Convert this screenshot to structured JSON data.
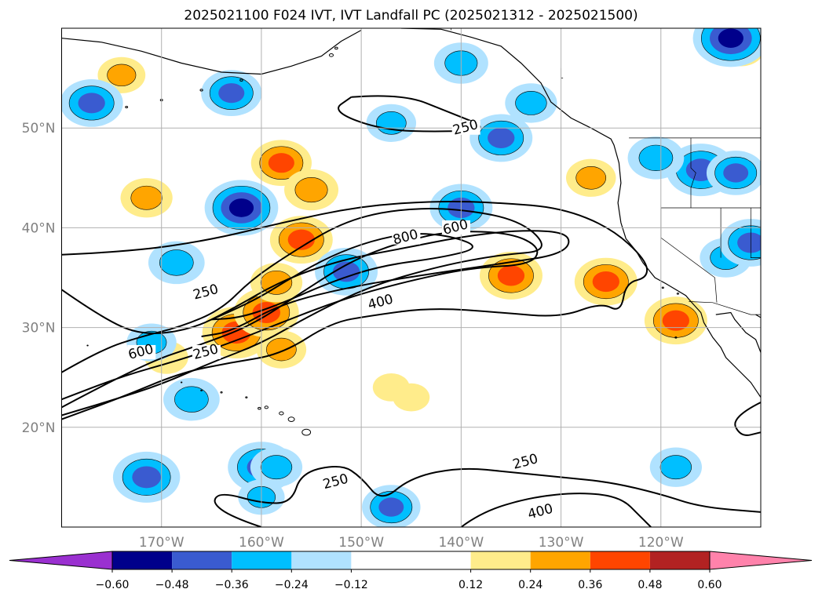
{
  "title": "2025021100 F024 IVT, IVT Landfall PC (2025021312 - 2025021500)",
  "map": {
    "projection": "PlateCarree",
    "lon_range": [
      -180,
      -110
    ],
    "lat_range": [
      10,
      60
    ],
    "lat_ticks": [
      {
        "value": 20,
        "label": "20°N"
      },
      {
        "value": 30,
        "label": "30°N"
      },
      {
        "value": 40,
        "label": "40°N"
      },
      {
        "value": 50,
        "label": "50°N"
      }
    ],
    "lon_ticks": [
      {
        "value": -170,
        "label": "170°W"
      },
      {
        "value": -160,
        "label": "160°W"
      },
      {
        "value": -150,
        "label": "150°W"
      },
      {
        "value": -140,
        "label": "140°W"
      },
      {
        "value": -130,
        "label": "130°W"
      },
      {
        "value": -120,
        "label": "120°W"
      }
    ],
    "grid": true,
    "ivt_contour_levels": [
      250,
      400,
      600,
      800
    ],
    "contour_labels": [
      {
        "text": "250",
        "lon": -139.5,
        "lat": 49.8
      },
      {
        "text": "250",
        "lon": -165.5,
        "lat": 33.3
      },
      {
        "text": "250",
        "lon": -165.5,
        "lat": 27.3
      },
      {
        "text": "250",
        "lon": -133.5,
        "lat": 16.3
      },
      {
        "text": "250",
        "lon": -152.5,
        "lat": 14.3
      },
      {
        "text": "400",
        "lon": -148.0,
        "lat": 32.3
      },
      {
        "text": "400",
        "lon": -132.0,
        "lat": 11.3
      },
      {
        "text": "600",
        "lon": -140.5,
        "lat": 39.8
      },
      {
        "text": "600",
        "lon": -172.0,
        "lat": 27.3
      },
      {
        "text": "800",
        "lon": -145.5,
        "lat": 38.8
      }
    ]
  },
  "colorbar": {
    "extend": "both",
    "bounds": [
      -0.72,
      -0.6,
      -0.48,
      -0.36,
      -0.24,
      -0.12,
      0.12,
      0.24,
      0.36,
      0.48,
      0.6,
      0.72
    ],
    "colors": [
      "#9a30d0",
      "#00008b",
      "#3a5bd0",
      "#00bfff",
      "#b0e2ff",
      "#ffffff",
      "#ffec8b",
      "#ffa500",
      "#ff4500",
      "#b22222",
      "#ff82ab"
    ],
    "tick_labels": [
      "−0.60",
      "−0.48",
      "−0.36",
      "−0.24",
      "−0.12",
      "0.12",
      "0.24",
      "0.36",
      "0.48",
      "0.60"
    ],
    "tick_values": [
      -0.6,
      -0.48,
      -0.36,
      -0.24,
      -0.12,
      0.12,
      0.24,
      0.36,
      0.48,
      0.6
    ]
  },
  "pc_blobs": [
    {
      "lon": -162.5,
      "lat": 29.5,
      "value": 0.45
    },
    {
      "lon": -159.5,
      "lat": 31.5,
      "value": 0.42
    },
    {
      "lon": -156.0,
      "lat": 38.8,
      "value": 0.4
    },
    {
      "lon": -158.0,
      "lat": 46.5,
      "value": 0.38
    },
    {
      "lon": -155.0,
      "lat": 43.8,
      "value": 0.32
    },
    {
      "lon": -171.5,
      "lat": 43.0,
      "value": 0.3
    },
    {
      "lon": -158.5,
      "lat": 34.5,
      "value": 0.3
    },
    {
      "lon": -158.0,
      "lat": 27.8,
      "value": 0.28
    },
    {
      "lon": -135.0,
      "lat": 35.2,
      "value": 0.4
    },
    {
      "lon": -125.5,
      "lat": 34.6,
      "value": 0.4
    },
    {
      "lon": -118.5,
      "lat": 30.7,
      "value": 0.4
    },
    {
      "lon": -174.0,
      "lat": 55.3,
      "value": 0.26
    },
    {
      "lon": -169.5,
      "lat": 27.0,
      "value": 0.22
    },
    {
      "lon": -127.0,
      "lat": 45.0,
      "value": 0.28
    },
    {
      "lon": -112.0,
      "lat": 58.0,
      "value": 0.26
    },
    {
      "lon": -147.0,
      "lat": 24.0,
      "value": 0.16
    },
    {
      "lon": -145.0,
      "lat": 23.0,
      "value": 0.16
    },
    {
      "lon": -162.0,
      "lat": 42.0,
      "value": -0.5
    },
    {
      "lon": -163.0,
      "lat": 53.5,
      "value": -0.38
    },
    {
      "lon": -140.0,
      "lat": 42.0,
      "value": -0.4
    },
    {
      "lon": -140.0,
      "lat": 56.5,
      "value": -0.32
    },
    {
      "lon": -133.0,
      "lat": 52.5,
      "value": -0.3
    },
    {
      "lon": -136.0,
      "lat": 49.0,
      "value": -0.4
    },
    {
      "lon": -147.0,
      "lat": 50.5,
      "value": -0.28
    },
    {
      "lon": -168.5,
      "lat": 36.5,
      "value": -0.34
    },
    {
      "lon": -151.5,
      "lat": 35.6,
      "value": -0.4
    },
    {
      "lon": -171.0,
      "lat": 28.5,
      "value": -0.28
    },
    {
      "lon": -167.0,
      "lat": 22.8,
      "value": -0.34
    },
    {
      "lon": -160.0,
      "lat": 16.0,
      "value": -0.44
    },
    {
      "lon": -171.5,
      "lat": 15.0,
      "value": -0.44
    },
    {
      "lon": -158.5,
      "lat": 16.0,
      "value": -0.3
    },
    {
      "lon": -160.0,
      "lat": 13.0,
      "value": -0.25
    },
    {
      "lon": -147.0,
      "lat": 12.0,
      "value": -0.36
    },
    {
      "lon": -113.0,
      "lat": 59.0,
      "value": -0.52
    },
    {
      "lon": -118.5,
      "lat": 16.0,
      "value": -0.3
    },
    {
      "lon": -113.5,
      "lat": 37.0,
      "value": -0.3
    },
    {
      "lon": -111.0,
      "lat": 38.5,
      "value": -0.4
    },
    {
      "lon": -116.0,
      "lat": 45.8,
      "value": -0.46
    },
    {
      "lon": -120.5,
      "lat": 47.0,
      "value": -0.34
    },
    {
      "lon": -112.5,
      "lat": 45.5,
      "value": -0.36
    },
    {
      "lon": -177.0,
      "lat": 52.5,
      "value": -0.4
    }
  ]
}
